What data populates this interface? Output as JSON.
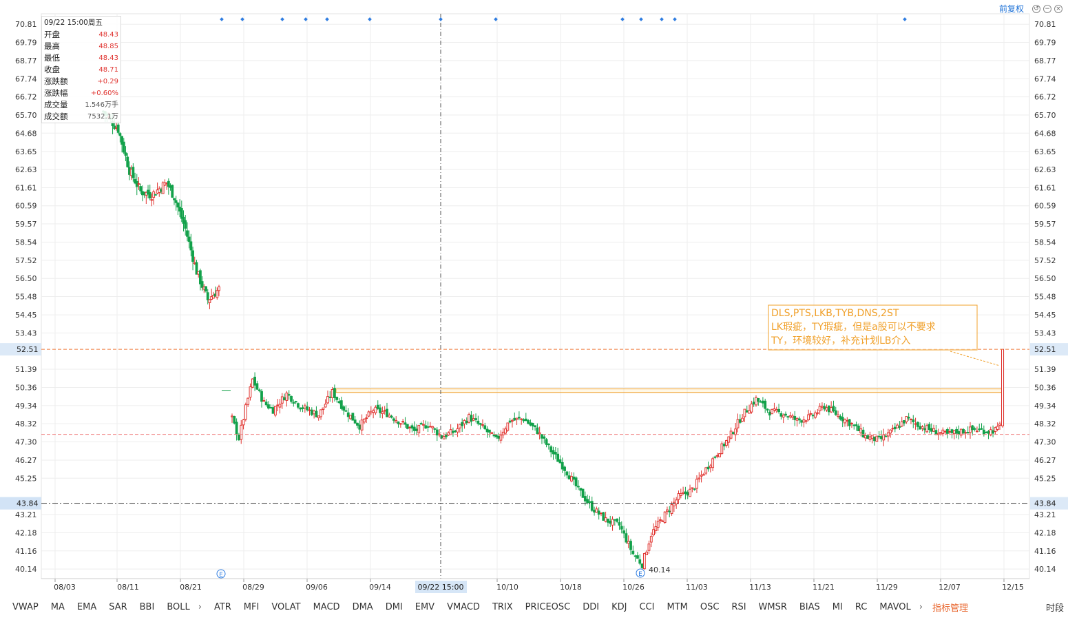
{
  "header": {
    "restore_label": "前复权",
    "icons": [
      "restore-icon",
      "minus-icon",
      "close-icon"
    ]
  },
  "ohlc_panel": {
    "datetime": "09/22 15:00周五",
    "rows": [
      {
        "key": "开盘",
        "value": "48.43",
        "color": "red"
      },
      {
        "key": "最高",
        "value": "48.85",
        "color": "red"
      },
      {
        "key": "最低",
        "value": "48.43",
        "color": "red"
      },
      {
        "key": "收盘",
        "value": "48.71",
        "color": "red"
      },
      {
        "key": "涨跌额",
        "value": "+0.29",
        "color": "red"
      },
      {
        "key": "涨跌幅",
        "value": "+0.60%",
        "color": "red"
      },
      {
        "key": "成交量",
        "value": "1.546万手",
        "color": "gray"
      },
      {
        "key": "成交额",
        "value": "7532.1万",
        "color": "gray"
      }
    ]
  },
  "indicators": [
    "VWAP",
    "MA",
    "EMA",
    "SAR",
    "BBI",
    "BOLL",
    "ATR",
    "MFI",
    "VOLAT",
    "MACD",
    "DMA",
    "DMI",
    "EMV",
    "VMACD",
    "TRIX",
    "PRICEOSC",
    "DDI",
    "KDJ",
    "CCI",
    "MTM",
    "OSC",
    "RSI",
    "WMSR",
    "BIAS",
    "MI",
    "RC",
    "MAVOL"
  ],
  "indicator_manage_label": "指标管理",
  "time_label": "时段",
  "colors": {
    "up": "#e0332f",
    "down": "#12a14a",
    "axis_text": "#333333",
    "grid": "#eeeeee",
    "annotation": "#f0a02a",
    "crosshair": "#555555",
    "marker": "#2f7de1"
  },
  "chart_data": {
    "type": "candlestick",
    "ylim": [
      39.6,
      71.4
    ],
    "y_ticks": [
      "70.81",
      "69.79",
      "68.77",
      "67.74",
      "66.72",
      "65.70",
      "64.68",
      "63.65",
      "62.63",
      "61.61",
      "60.59",
      "59.57",
      "58.54",
      "57.52",
      "56.50",
      "55.48",
      "54.45",
      "53.43",
      "51.39",
      "50.36",
      "49.34",
      "48.32",
      "47.30",
      "46.27",
      "45.25",
      "43.21",
      "42.18",
      "41.16",
      "40.14"
    ],
    "x_labels": [
      "08/03",
      "08/11",
      "08/21",
      "08/29",
      "09/06",
      "09/14",
      "10/10",
      "10/18",
      "10/26",
      "11/03",
      "11/13",
      "11/21",
      "11/29",
      "12/07",
      "12/15"
    ],
    "price_tags": [
      {
        "label": "52.51",
        "value": 52.51,
        "style": "dashed-orange"
      },
      {
        "label": "43.84",
        "value": 43.84,
        "style": "dashdot-dark"
      }
    ],
    "reference_line": {
      "value": 47.72,
      "style": "dashed-pink"
    },
    "crosshair": {
      "label": "09/22 15:00"
    },
    "support_band": {
      "low": 50.08,
      "high": 50.28
    },
    "support_band_start": "09/22",
    "low_marker": {
      "label": "40.14",
      "value": 40.14
    },
    "event_markers": [
      "E",
      "E"
    ],
    "annotation": {
      "lines": [
        "DLS,PTS,LKB,TYB,DNS,2ST",
        "LK瑕疵，TY瑕疵，但是a股可以不要求",
        "TY，环境较好，补充计划LB介入"
      ]
    },
    "segments": [
      {
        "name": "pre",
        "path": [
          [
            0,
            65.9
          ],
          [
            4,
            65.4
          ],
          [
            8,
            64.9
          ],
          [
            14,
            62.6
          ],
          [
            20,
            61.4
          ],
          [
            26,
            61.2
          ],
          [
            34,
            61.9
          ],
          [
            38,
            61.1
          ],
          [
            44,
            59.3
          ],
          [
            50,
            56.9
          ],
          [
            56,
            55.3
          ],
          [
            62,
            55.9
          ]
        ],
        "noise": 0.55
      },
      {
        "name": "main",
        "path": [
          [
            0,
            48.6
          ],
          [
            3,
            47.5
          ],
          [
            6,
            49.2
          ],
          [
            9,
            50.8
          ],
          [
            14,
            49.5
          ],
          [
            18,
            49.1
          ],
          [
            24,
            50.0
          ],
          [
            30,
            49.3
          ],
          [
            38,
            48.8
          ],
          [
            44,
            50.1
          ],
          [
            50,
            49.0
          ],
          [
            56,
            48.2
          ],
          [
            62,
            49.1
          ],
          [
            68,
            48.9
          ],
          [
            74,
            48.4
          ],
          [
            80,
            47.9
          ],
          [
            86,
            48.3
          ],
          [
            92,
            47.6
          ],
          [
            98,
            47.9
          ],
          [
            104,
            48.7
          ],
          [
            110,
            48.1
          ],
          [
            116,
            47.4
          ],
          [
            122,
            48.5
          ],
          [
            128,
            48.6
          ],
          [
            134,
            47.9
          ],
          [
            140,
            46.8
          ],
          [
            146,
            45.8
          ],
          [
            152,
            44.6
          ],
          [
            158,
            43.6
          ],
          [
            164,
            42.9
          ],
          [
            170,
            42.6
          ],
          [
            176,
            41.0
          ],
          [
            180,
            40.4
          ],
          [
            184,
            42.1
          ],
          [
            190,
            43.2
          ],
          [
            196,
            44.2
          ],
          [
            202,
            44.6
          ],
          [
            206,
            45.4
          ],
          [
            212,
            46.5
          ],
          [
            218,
            47.5
          ],
          [
            224,
            48.8
          ],
          [
            230,
            49.7
          ],
          [
            236,
            49.0
          ],
          [
            242,
            48.9
          ],
          [
            248,
            48.5
          ],
          [
            254,
            48.7
          ],
          [
            260,
            49.3
          ],
          [
            266,
            48.8
          ],
          [
            272,
            48.3
          ],
          [
            278,
            47.6
          ],
          [
            284,
            47.4
          ],
          [
            290,
            47.9
          ],
          [
            296,
            48.6
          ],
          [
            302,
            48.2
          ],
          [
            308,
            47.9
          ],
          [
            314,
            47.7
          ],
          [
            320,
            47.9
          ],
          [
            326,
            48.0
          ],
          [
            332,
            47.9
          ],
          [
            336,
            48.0
          ],
          [
            337,
            48.2
          ]
        ],
        "noise": 0.4
      }
    ],
    "last_candle": {
      "open": 48.2,
      "close": 52.51,
      "low": 48.1,
      "high": 52.51
    }
  }
}
